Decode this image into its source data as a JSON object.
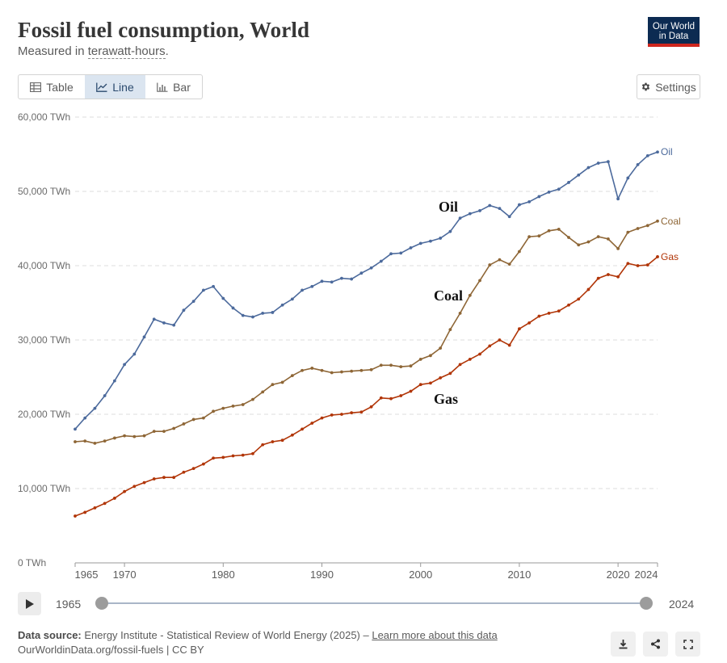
{
  "header": {
    "title": "Fossil fuel consumption, World",
    "subtitle_prefix": "Measured in ",
    "subtitle_unit": "terawatt-hours",
    "subtitle_suffix": "."
  },
  "logo": {
    "line1": "Our World",
    "line2": "in Data"
  },
  "tabs": [
    {
      "label": "Table",
      "icon": "table-icon",
      "active": false
    },
    {
      "label": "Line",
      "icon": "line-chart-icon",
      "active": true
    },
    {
      "label": "Bar",
      "icon": "bar-chart-icon",
      "active": false
    }
  ],
  "settings_label": "Settings",
  "timeline": {
    "start": "1965",
    "end": "2024"
  },
  "footer": {
    "source_label": "Data source:",
    "source_text": " Energy Institute - Statistical Review of World Energy (2025) – ",
    "learn_more": "Learn more about this data",
    "url": "OurWorldinData.org/fossil-fuels | CC BY"
  },
  "colors": {
    "oil": "#4c6a9c",
    "coal": "#8e6636",
    "gas": "#b13507",
    "grid": "#dddddd"
  },
  "chart_data": {
    "type": "line",
    "title": "Fossil fuel consumption, World",
    "ylabel": "TWh",
    "ylim": [
      0,
      60000
    ],
    "yticks": [
      0,
      10000,
      20000,
      30000,
      40000,
      50000,
      60000
    ],
    "ytick_labels": [
      "0 TWh",
      "10,000 TWh",
      "20,000 TWh",
      "30,000 TWh",
      "40,000 TWh",
      "50,000 TWh",
      "60,000 TWh"
    ],
    "xlim": [
      1965,
      2024
    ],
    "xticks": [
      1965,
      1970,
      1980,
      1990,
      2000,
      2010,
      2020,
      2024
    ],
    "xtick_labels": [
      "1965",
      "1970",
      "1980",
      "1990",
      "2000",
      "2010",
      "2020",
      "2024"
    ],
    "x": [
      1965,
      1966,
      1967,
      1968,
      1969,
      1970,
      1971,
      1972,
      1973,
      1974,
      1975,
      1976,
      1977,
      1978,
      1979,
      1980,
      1981,
      1982,
      1983,
      1984,
      1985,
      1986,
      1987,
      1988,
      1989,
      1990,
      1991,
      1992,
      1993,
      1994,
      1995,
      1996,
      1997,
      1998,
      1999,
      2000,
      2001,
      2002,
      2003,
      2004,
      2005,
      2006,
      2007,
      2008,
      2009,
      2010,
      2011,
      2012,
      2013,
      2014,
      2015,
      2016,
      2017,
      2018,
      2019,
      2020,
      2021,
      2022,
      2023,
      2024
    ],
    "series": [
      {
        "name": "Oil",
        "end_label": "Oil",
        "annotation": "Oil",
        "values": [
          18000,
          19500,
          20800,
          22500,
          24500,
          26700,
          28100,
          30400,
          32800,
          32300,
          32000,
          34000,
          35200,
          36700,
          37200,
          35600,
          34300,
          33300,
          33100,
          33600,
          33700,
          34700,
          35500,
          36700,
          37200,
          37900,
          37800,
          38300,
          38200,
          39000,
          39700,
          40600,
          41600,
          41700,
          42400,
          43000,
          43300,
          43700,
          44600,
          46400,
          47000,
          47400,
          48100,
          47700,
          46600,
          48200,
          48600,
          49300,
          49900,
          50300,
          51200,
          52200,
          53200,
          53800,
          54000,
          49000,
          51800,
          53600,
          54800,
          55300
        ]
      },
      {
        "name": "Coal",
        "end_label": "Coal",
        "annotation": "Coal",
        "values": [
          16300,
          16400,
          16100,
          16400,
          16800,
          17100,
          17000,
          17100,
          17700,
          17700,
          18100,
          18700,
          19300,
          19500,
          20400,
          20800,
          21100,
          21300,
          22000,
          23000,
          24000,
          24300,
          25200,
          25900,
          26200,
          25900,
          25600,
          25700,
          25800,
          25900,
          26000,
          26600,
          26600,
          26400,
          26500,
          27400,
          27900,
          28900,
          31400,
          33600,
          36000,
          38000,
          40100,
          40800,
          40200,
          41900,
          43900,
          44000,
          44700,
          44900,
          43800,
          42800,
          43200,
          43900,
          43600,
          42300,
          44500,
          45000,
          45400,
          46000
        ]
      },
      {
        "name": "Gas",
        "end_label": "Gas",
        "annotation": "Gas",
        "values": [
          6300,
          6800,
          7400,
          8000,
          8700,
          9600,
          10300,
          10800,
          11300,
          11500,
          11500,
          12200,
          12700,
          13300,
          14100,
          14200,
          14400,
          14500,
          14700,
          15900,
          16300,
          16500,
          17200,
          18000,
          18800,
          19500,
          19900,
          20000,
          20200,
          20300,
          21000,
          22200,
          22100,
          22500,
          23100,
          24000,
          24200,
          24900,
          25500,
          26700,
          27400,
          28100,
          29200,
          30000,
          29300,
          31500,
          32300,
          33200,
          33600,
          33900,
          34700,
          35500,
          36800,
          38300,
          38800,
          38500,
          40300,
          40000,
          40100,
          41200
        ]
      }
    ]
  }
}
